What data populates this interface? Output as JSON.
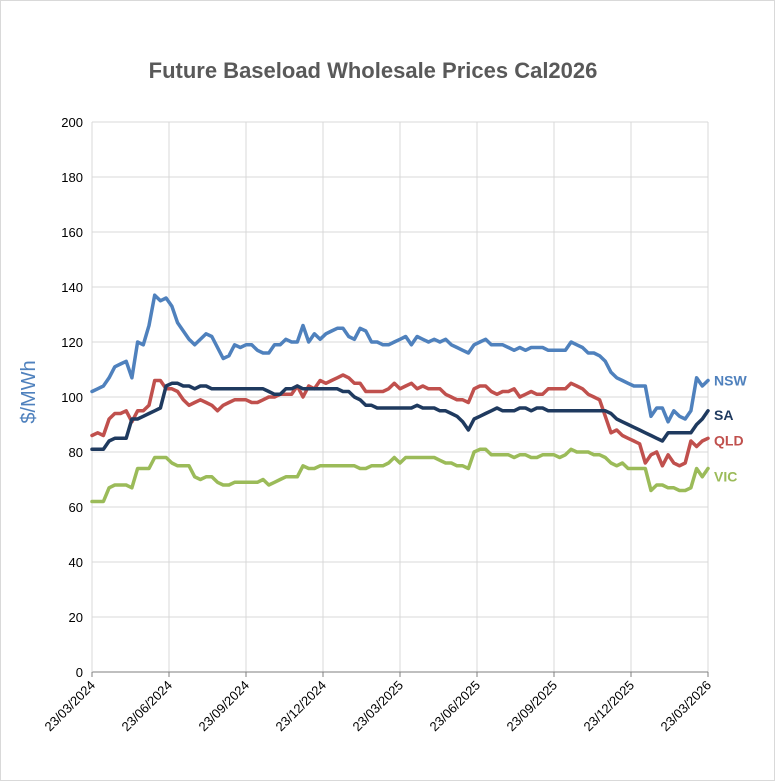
{
  "chart_data": {
    "type": "line",
    "title": "Future Baseload Wholesale Prices Cal2026",
    "ylabel": "$/MWh",
    "ylim": [
      0,
      200
    ],
    "yticks": [
      "0",
      "20",
      "40",
      "60",
      "80",
      "100",
      "120",
      "140",
      "160",
      "180",
      "200"
    ],
    "xticks": [
      "23/03/2024",
      "23/06/2024",
      "23/09/2024",
      "23/12/2024",
      "23/03/2025",
      "23/06/2025",
      "23/09/2025",
      "23/12/2025",
      "23/03/2026"
    ],
    "grid": true,
    "label_color": "#4f81bd",
    "series": [
      {
        "name": "NSW",
        "color": "#4f81bd",
        "values": [
          102,
          103,
          104,
          107,
          111,
          112,
          113,
          107,
          120,
          119,
          126,
          137,
          135,
          136,
          133,
          127,
          124,
          121,
          119,
          121,
          123,
          122,
          118,
          114,
          115,
          119,
          118,
          119,
          119,
          117,
          116,
          116,
          119,
          119,
          121,
          120,
          120,
          126,
          120,
          123,
          121,
          123,
          124,
          125,
          125,
          122,
          121,
          125,
          124,
          120,
          120,
          119,
          119,
          120,
          121,
          122,
          119,
          122,
          121,
          120,
          121,
          120,
          121,
          119,
          118,
          117,
          116,
          119,
          120,
          121,
          119,
          119,
          119,
          118,
          117,
          118,
          117,
          118,
          118,
          118,
          117,
          117,
          117,
          117,
          120,
          119,
          118,
          116,
          116,
          115,
          113,
          109,
          107,
          106,
          105,
          104,
          104,
          104,
          93,
          96,
          96,
          91,
          95,
          93,
          92,
          95,
          107,
          104,
          106
        ]
      },
      {
        "name": "SA",
        "color": "#1f3a5f",
        "values": [
          81,
          81,
          81,
          84,
          85,
          85,
          85,
          92,
          92,
          93,
          94,
          95,
          96,
          104,
          105,
          105,
          104,
          104,
          103,
          104,
          104,
          103,
          103,
          103,
          103,
          103,
          103,
          103,
          103,
          103,
          103,
          102,
          101,
          101,
          103,
          103,
          104,
          103,
          103,
          103,
          103,
          103,
          103,
          103,
          102,
          102,
          100,
          99,
          97,
          97,
          96,
          96,
          96,
          96,
          96,
          96,
          96,
          97,
          96,
          96,
          96,
          95,
          95,
          94,
          93,
          91,
          88,
          92,
          93,
          94,
          95,
          96,
          95,
          95,
          95,
          96,
          96,
          95,
          96,
          96,
          95,
          95,
          95,
          95,
          95,
          95,
          95,
          95,
          95,
          95,
          95,
          94,
          92,
          91,
          90,
          89,
          88,
          87,
          86,
          85,
          84,
          87,
          87,
          87,
          87,
          87,
          90,
          92,
          95
        ]
      },
      {
        "name": "QLD",
        "color": "#c0504d",
        "values": [
          86,
          87,
          86,
          92,
          94,
          94,
          95,
          91,
          95,
          95,
          97,
          106,
          106,
          103,
          103,
          102,
          99,
          97,
          98,
          99,
          98,
          97,
          95,
          97,
          98,
          99,
          99,
          99,
          98,
          98,
          99,
          100,
          100,
          101,
          101,
          101,
          104,
          100,
          104,
          103,
          106,
          105,
          106,
          107,
          108,
          107,
          105,
          105,
          102,
          102,
          102,
          102,
          103,
          105,
          103,
          104,
          105,
          103,
          104,
          103,
          103,
          103,
          101,
          100,
          99,
          99,
          98,
          103,
          104,
          104,
          102,
          101,
          102,
          102,
          103,
          100,
          101,
          102,
          101,
          101,
          103,
          103,
          103,
          103,
          105,
          104,
          103,
          101,
          100,
          99,
          93,
          87,
          88,
          86,
          85,
          84,
          83,
          76,
          79,
          80,
          75,
          79,
          76,
          75,
          76,
          84,
          82,
          84,
          85
        ]
      },
      {
        "name": "VIC",
        "color": "#9bbb59",
        "values": [
          62,
          62,
          62,
          67,
          68,
          68,
          68,
          67,
          74,
          74,
          74,
          78,
          78,
          78,
          76,
          75,
          75,
          75,
          71,
          70,
          71,
          71,
          69,
          68,
          68,
          69,
          69,
          69,
          69,
          69,
          70,
          68,
          69,
          70,
          71,
          71,
          71,
          75,
          74,
          74,
          75,
          75,
          75,
          75,
          75,
          75,
          75,
          74,
          74,
          75,
          75,
          75,
          76,
          78,
          76,
          78,
          78,
          78,
          78,
          78,
          78,
          77,
          76,
          76,
          75,
          75,
          74,
          80,
          81,
          81,
          79,
          79,
          79,
          79,
          78,
          79,
          79,
          78,
          78,
          79,
          79,
          79,
          78,
          79,
          81,
          80,
          80,
          80,
          79,
          79,
          78,
          76,
          75,
          76,
          74,
          74,
          74,
          74,
          66,
          68,
          68,
          67,
          67,
          66,
          66,
          67,
          74,
          71,
          74
        ]
      }
    ]
  }
}
